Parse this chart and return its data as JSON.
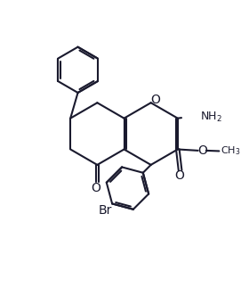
{
  "bg_color": "#ffffff",
  "line_color": "#1a1a2e",
  "line_width": 1.5,
  "font_size": 9,
  "figsize": [
    2.8,
    3.32
  ],
  "dpi": 100,
  "xlim": [
    0,
    10
  ],
  "ylim": [
    0,
    11.857
  ]
}
